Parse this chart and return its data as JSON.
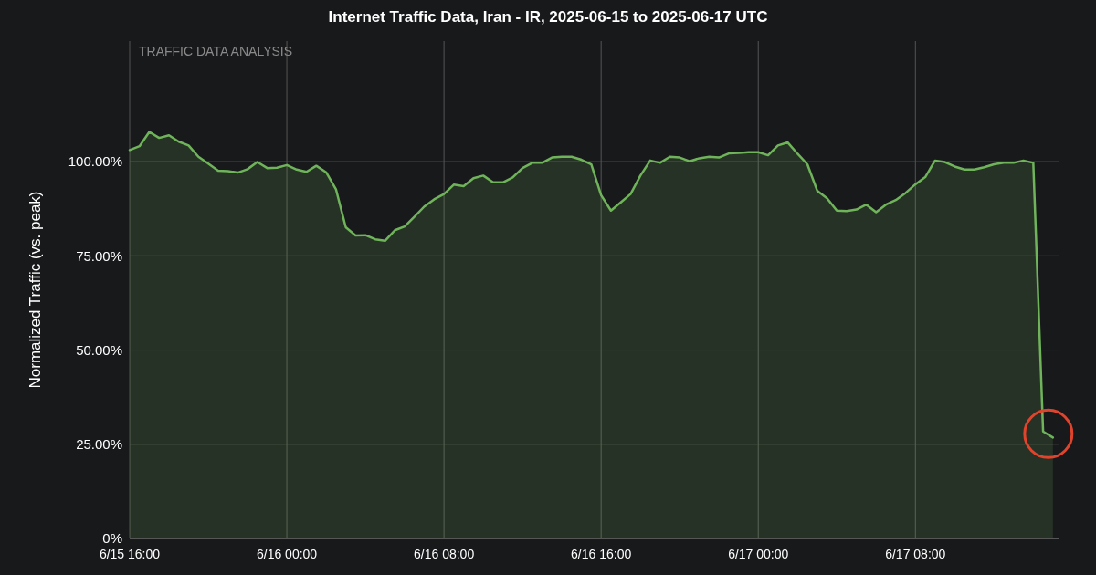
{
  "chart_data": {
    "type": "area",
    "title": "Internet Traffic Data, Iran - IR, 2025-06-15 to 2025-06-17 UTC",
    "ylabel": "Normalized Traffic (vs. peak)",
    "annotations": [
      "TRAFFIC DATA ANALYSIS"
    ],
    "color": "#6fb35a",
    "x": [
      "2025-06-15T16:00",
      "2025-06-15T16:30",
      "2025-06-15T17:00",
      "2025-06-15T17:30",
      "2025-06-15T18:00",
      "2025-06-15T18:30",
      "2025-06-15T19:00",
      "2025-06-15T19:30",
      "2025-06-15T20:00",
      "2025-06-15T20:30",
      "2025-06-15T21:00",
      "2025-06-15T21:30",
      "2025-06-15T22:00",
      "2025-06-15T22:30",
      "2025-06-15T23:00",
      "2025-06-15T23:30",
      "2025-06-16T00:00",
      "2025-06-16T00:30",
      "2025-06-16T01:00",
      "2025-06-16T01:30",
      "2025-06-16T02:00",
      "2025-06-16T02:30",
      "2025-06-16T03:00",
      "2025-06-16T03:30",
      "2025-06-16T04:00",
      "2025-06-16T04:30",
      "2025-06-16T05:00",
      "2025-06-16T05:30",
      "2025-06-16T06:00",
      "2025-06-16T06:30",
      "2025-06-16T07:00",
      "2025-06-16T07:30",
      "2025-06-16T08:00",
      "2025-06-16T08:30",
      "2025-06-16T09:00",
      "2025-06-16T09:30",
      "2025-06-16T10:00",
      "2025-06-16T10:30",
      "2025-06-16T11:00",
      "2025-06-16T11:30",
      "2025-06-16T12:00",
      "2025-06-16T12:30",
      "2025-06-16T13:00",
      "2025-06-16T13:30",
      "2025-06-16T14:00",
      "2025-06-16T14:30",
      "2025-06-16T15:00",
      "2025-06-16T15:30",
      "2025-06-16T16:00",
      "2025-06-16T16:30",
      "2025-06-16T17:00",
      "2025-06-16T17:30",
      "2025-06-16T18:00",
      "2025-06-16T18:30",
      "2025-06-16T19:00",
      "2025-06-16T19:30",
      "2025-06-16T20:00",
      "2025-06-16T20:30",
      "2025-06-16T21:00",
      "2025-06-16T21:30",
      "2025-06-16T22:00",
      "2025-06-16T22:30",
      "2025-06-16T23:00",
      "2025-06-16T23:30",
      "2025-06-17T00:00",
      "2025-06-17T00:30",
      "2025-06-17T01:00",
      "2025-06-17T01:30",
      "2025-06-17T02:00",
      "2025-06-17T02:30",
      "2025-06-17T03:00",
      "2025-06-17T03:30",
      "2025-06-17T04:00",
      "2025-06-17T04:30",
      "2025-06-17T05:00",
      "2025-06-17T05:30",
      "2025-06-17T06:00",
      "2025-06-17T06:30",
      "2025-06-17T07:00",
      "2025-06-17T07:30",
      "2025-06-17T08:00",
      "2025-06-17T08:30",
      "2025-06-17T09:00",
      "2025-06-17T09:30",
      "2025-06-17T10:00",
      "2025-06-17T10:30",
      "2025-06-17T11:00",
      "2025-06-17T11:30",
      "2025-06-17T12:00",
      "2025-06-17T12:30",
      "2025-06-17T13:00",
      "2025-06-17T13:30",
      "2025-06-17T14:00",
      "2025-06-17T14:30",
      "2025-06-17T15:00"
    ],
    "values": [
      103.1,
      104.1,
      107.9,
      106.3,
      107.0,
      105.3,
      104.3,
      101.3,
      99.5,
      97.6,
      97.5,
      97.1,
      98.0,
      99.9,
      98.3,
      98.4,
      99.1,
      97.9,
      97.3,
      98.9,
      97.2,
      92.7,
      82.6,
      80.4,
      80.5,
      79.4,
      79.0,
      81.8,
      82.8,
      85.4,
      88.1,
      90.0,
      91.4,
      93.9,
      93.5,
      95.6,
      96.3,
      94.5,
      94.5,
      95.8,
      98.3,
      99.7,
      99.7,
      101.1,
      101.3,
      101.3,
      100.5,
      99.3,
      91.1,
      87.0,
      89.2,
      91.4,
      96.3,
      100.3,
      99.7,
      101.3,
      101.1,
      100.1,
      100.9,
      101.3,
      101.1,
      102.2,
      102.3,
      102.5,
      102.5,
      101.7,
      104.3,
      105.1,
      102.1,
      99.3,
      92.3,
      90.3,
      87.0,
      86.9,
      87.3,
      88.6,
      86.6,
      88.6,
      89.8,
      91.7,
      94.0,
      95.9,
      100.3,
      99.9,
      98.7,
      97.9,
      97.9,
      98.5,
      99.3,
      99.7,
      99.7,
      100.3,
      99.7,
      28.4,
      26.8
    ],
    "xlim": [
      "2025-06-15T16:00",
      "2025-06-17T15:20"
    ],
    "xticks": [
      {
        "value": "2025-06-15T16:00",
        "label": "6/15 16:00"
      },
      {
        "value": "2025-06-16T00:00",
        "label": "6/16 00:00"
      },
      {
        "value": "2025-06-16T08:00",
        "label": "6/16 08:00"
      },
      {
        "value": "2025-06-16T16:00",
        "label": "6/16 16:00"
      },
      {
        "value": "2025-06-17T00:00",
        "label": "6/17 00:00"
      },
      {
        "value": "2025-06-17T08:00",
        "label": "6/17 08:00"
      }
    ],
    "ylim": [
      0,
      132
    ],
    "yticks": [
      {
        "value": 0,
        "label": "0%"
      },
      {
        "value": 25,
        "label": "25.00%"
      },
      {
        "value": 50,
        "label": "50.00%"
      },
      {
        "value": 75,
        "label": "75.00%"
      },
      {
        "value": 100,
        "label": "100.00%"
      }
    ],
    "grid": true
  }
}
